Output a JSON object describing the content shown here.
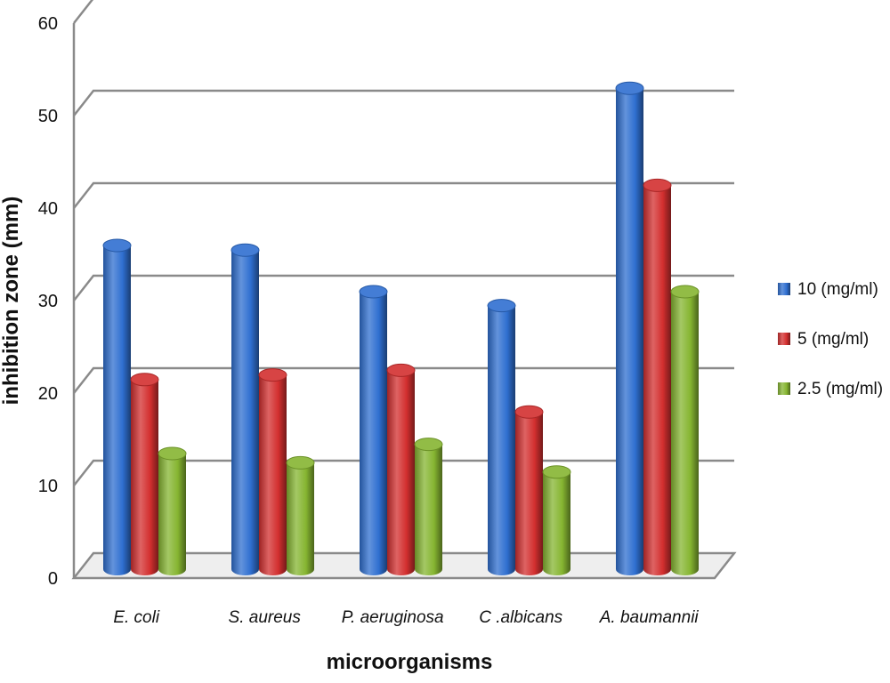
{
  "chart_data": {
    "type": "bar",
    "title": "",
    "xlabel": "microorganisms",
    "ylabel": "inhibition zone (mm)",
    "ylim": [
      0,
      60
    ],
    "yticks": [
      "0",
      "10",
      "20",
      "30",
      "40",
      "50",
      "60"
    ],
    "grid": true,
    "legend_position": "right",
    "categories": [
      "E. coli",
      "S. aureus",
      "P. aeruginosa",
      "C .albicans",
      "A. baumannii"
    ],
    "series": [
      {
        "name": "10 (mg/ml)",
        "color": "#2f6fd0",
        "values": [
          35,
          34.5,
          30,
          28.5,
          52
        ]
      },
      {
        "name": "5 (mg/ml)",
        "color": "#d32f2f",
        "values": [
          20.5,
          21,
          21.5,
          17,
          41.5
        ]
      },
      {
        "name": "2.5 (mg/ml)",
        "color": "#86b531",
        "values": [
          12.5,
          11.5,
          13.5,
          10.5,
          30
        ]
      }
    ]
  }
}
